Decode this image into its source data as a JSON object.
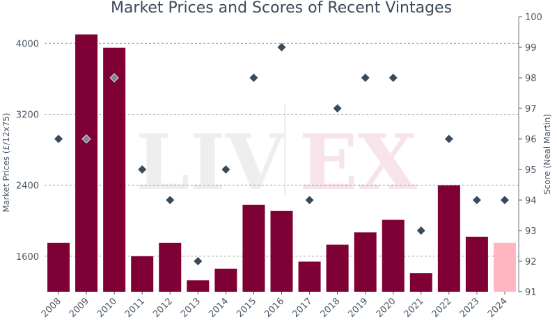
{
  "chart_data": {
    "type": "bar",
    "title": "Market Prices and Scores of Recent Vintages",
    "xlabel": "",
    "ylabel": "Market Prices (£/12x75)",
    "y2label": "Score (Neal Martin)",
    "categories": [
      "2008",
      "2009",
      "2010",
      "2011",
      "2012",
      "2013",
      "2014",
      "2015",
      "2016",
      "2017",
      "2018",
      "2019",
      "2020",
      "2021",
      "2022",
      "2023",
      "2024"
    ],
    "ylim": [
      1200,
      4300
    ],
    "y2lim": [
      91,
      100
    ],
    "yticks": [
      "1600",
      "2400",
      "3200",
      "4000"
    ],
    "y2ticks": [
      "91",
      "92",
      "93",
      "94",
      "95",
      "96",
      "97",
      "98",
      "99",
      "100"
    ],
    "grid": "horizontal dashed",
    "series": [
      {
        "type": "bar",
        "axis": "left",
        "values": [
          1750,
          4100,
          3950,
          1600,
          1750,
          1330,
          1460,
          2180,
          2110,
          1540,
          1730,
          1870,
          2010,
          1410,
          2400,
          1820,
          1750
        ],
        "highlight_last": true
      },
      {
        "type": "scatter",
        "axis": "right",
        "marker": "diamond",
        "values": [
          96,
          96,
          98,
          95,
          94,
          92,
          95,
          98,
          99,
          94,
          97,
          98,
          98,
          93,
          96,
          94,
          94
        ]
      }
    ],
    "watermark": "LIV-EX",
    "colors": {
      "bar": "#7f0035",
      "bar_highlight": "#ffb6c1",
      "marker": "#3b4a5a",
      "grid": "#888888"
    }
  }
}
